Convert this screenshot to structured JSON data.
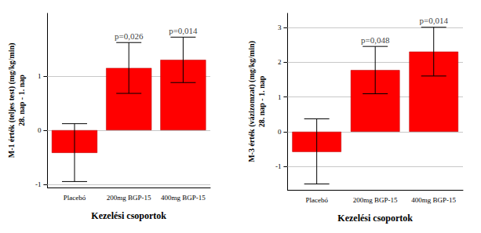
{
  "chart_data": [
    {
      "type": "bar",
      "ylabel": [
        "M-1 érték (teljes test) (mg/kg/min)",
        "28. nap - 1. nap"
      ],
      "xlabel": "Kezelési csoportok",
      "categories": [
        "Placebó",
        "200mg BGP-15",
        "400mg BGP-15"
      ],
      "values": [
        -0.42,
        1.15,
        1.3
      ],
      "error_bars": [
        [
          -0.95,
          0.12
        ],
        [
          0.68,
          1.62
        ],
        [
          0.88,
          1.72
        ]
      ],
      "annotations": [
        null,
        "p=0,026",
        "p=0,014"
      ],
      "color": "#ff0000",
      "ylim": [
        -1.06,
        2.16
      ],
      "yticks": [
        -1,
        0,
        1
      ],
      "grid": true
    },
    {
      "type": "bar",
      "ylabel": [
        "M-3 érték (vázizomzat) (mg/kg/min)",
        "28. nap - 1. nap"
      ],
      "xlabel": "Kezelési csoportok",
      "categories": [
        "Placebó",
        "200mg BGP-15",
        "400mg BGP-15"
      ],
      "values": [
        -0.58,
        1.77,
        2.3
      ],
      "error_bars": [
        [
          -1.5,
          0.37
        ],
        [
          1.09,
          2.45
        ],
        [
          1.6,
          3.0
        ]
      ],
      "annotations": [
        null,
        "p=0,048",
        "p=0,014"
      ],
      "color": "#ff0000",
      "ylim": [
        -1.67,
        3.4
      ],
      "yticks": [
        -1,
        0,
        1,
        2,
        3
      ],
      "grid": true
    }
  ]
}
